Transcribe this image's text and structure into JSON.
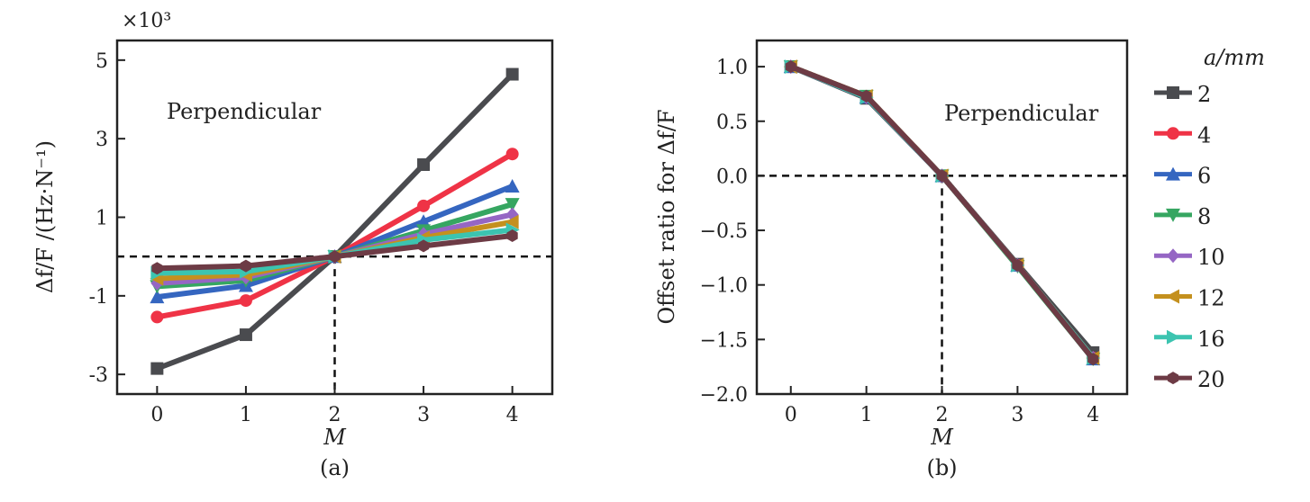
{
  "chart_data": [
    {
      "type": "line",
      "panel": "(a)",
      "annotation": "Perpendicular",
      "multiplier": "×10³",
      "xlabel": "M",
      "ylabel": "Δf/F /(Hz·N⁻¹)",
      "xlim": [
        -0.45,
        4.45
      ],
      "ylim": [
        -3.5,
        5.5
      ],
      "xticks": [
        0,
        1,
        2,
        3,
        4
      ],
      "yticks": [
        -3,
        -1,
        1,
        3,
        5
      ],
      "reference_lines": {
        "y": 0,
        "x": 2
      },
      "x": [
        0,
        1,
        2,
        3,
        4
      ],
      "series": [
        {
          "name": "2",
          "color": "#4a4b4f",
          "marker": "square",
          "values": [
            -2.85,
            -1.99,
            0,
            2.34,
            4.64
          ]
        },
        {
          "name": "4",
          "color": "#ef3346",
          "marker": "circle",
          "values": [
            -1.54,
            -1.12,
            0,
            1.29,
            2.61
          ]
        },
        {
          "name": "6",
          "color": "#3566c0",
          "marker": "triangle-up",
          "values": [
            -1.03,
            -0.74,
            0,
            0.89,
            1.79
          ]
        },
        {
          "name": "8",
          "color": "#36a661",
          "marker": "triangle-down",
          "values": [
            -0.76,
            -0.61,
            0,
            0.66,
            1.33
          ]
        },
        {
          "name": "10",
          "color": "#9566c4",
          "marker": "diamond",
          "values": [
            -0.68,
            -0.53,
            0,
            0.57,
            1.07
          ]
        },
        {
          "name": "12",
          "color": "#c4901e",
          "marker": "triangle-left",
          "values": [
            -0.56,
            -0.46,
            0,
            0.48,
            0.88
          ]
        },
        {
          "name": "16",
          "color": "#3cc4b0",
          "marker": "triangle-right",
          "values": [
            -0.42,
            -0.38,
            0,
            0.42,
            0.68
          ]
        },
        {
          "name": "20",
          "color": "#6d3b45",
          "marker": "hexagon",
          "values": [
            -0.3,
            -0.24,
            0,
            0.27,
            0.53
          ]
        }
      ]
    },
    {
      "type": "line",
      "panel": "(b)",
      "annotation": "Perpendicular",
      "xlabel": "M",
      "ylabel": "Offset ratio for Δf/F",
      "xlim": [
        -0.45,
        4.45
      ],
      "ylim": [
        -2.0,
        1.24
      ],
      "xticks": [
        0,
        1,
        2,
        3,
        4
      ],
      "yticks": [
        "1.0",
        "0.5",
        "0.0",
        "−0.5",
        "−1.0",
        "−1.5",
        "−2.0"
      ],
      "reference_lines": {
        "y": 0,
        "x": 2
      },
      "legend_title": "a/mm",
      "legend_position": "right-outside",
      "x": [
        0,
        1,
        2,
        3,
        4
      ],
      "series": [
        {
          "name": "2",
          "values": [
            1.0,
            0.71,
            0,
            -0.81,
            -1.62
          ]
        },
        {
          "name": "4",
          "values": [
            1.0,
            0.73,
            0,
            -0.82,
            -1.67
          ]
        },
        {
          "name": "6",
          "values": [
            1.0,
            0.72,
            0,
            -0.82,
            -1.68
          ]
        },
        {
          "name": "8",
          "values": [
            1.0,
            0.73,
            0,
            -0.83,
            -1.68
          ]
        },
        {
          "name": "10",
          "values": [
            1.0,
            0.72,
            0,
            -0.82,
            -1.67
          ]
        },
        {
          "name": "12",
          "values": [
            1.0,
            0.73,
            0,
            -0.82,
            -1.67
          ]
        },
        {
          "name": "16",
          "values": [
            1.0,
            0.72,
            0,
            -0.82,
            -1.67
          ]
        },
        {
          "name": "20",
          "values": [
            1.0,
            0.73,
            0,
            -0.82,
            -1.68
          ]
        }
      ]
    }
  ]
}
